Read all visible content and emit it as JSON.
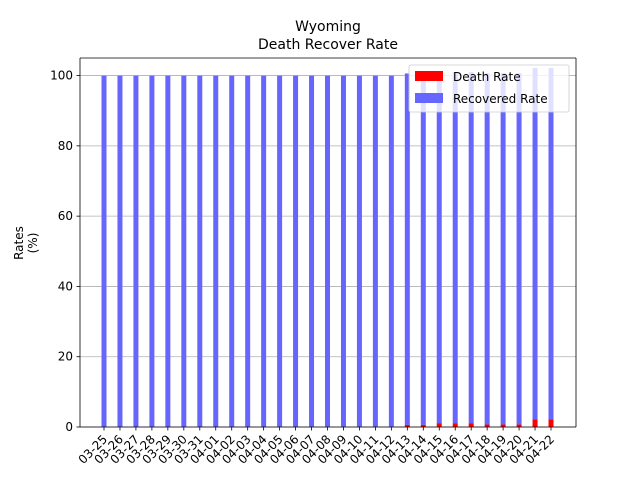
{
  "chart_data": {
    "type": "bar",
    "title": "Wyoming",
    "subtitle": "Death Recover Rate",
    "xlabel": "",
    "ylabel": "Rates\n(%)",
    "ylim": [
      0,
      105
    ],
    "yticks": [
      0,
      20,
      40,
      60,
      80,
      100
    ],
    "grid": "y",
    "legend_position": "top-right",
    "categories": [
      "03-25",
      "03-26",
      "03-27",
      "03-28",
      "03-29",
      "03-30",
      "03-31",
      "04-01",
      "04-02",
      "04-03",
      "04-04",
      "04-05",
      "04-06",
      "04-07",
      "04-08",
      "04-09",
      "04-10",
      "04-11",
      "04-12",
      "04-13",
      "04-14",
      "04-15",
      "04-16",
      "04-17",
      "04-18",
      "04-19",
      "04-20",
      "04-21",
      "04-22"
    ],
    "series": [
      {
        "name": "Death Rate",
        "color": "#ff0000",
        "values": [
          0,
          0,
          0,
          0,
          0,
          0,
          0,
          0,
          0,
          0,
          0,
          0,
          0,
          0,
          0,
          0,
          0,
          0,
          0,
          0.6,
          0.6,
          1.1,
          1.0,
          1.0,
          0.7,
          0.7,
          0.7,
          2.2,
          2.2
        ]
      },
      {
        "name": "Recovered Rate",
        "color": "#6666ff",
        "values": [
          100,
          100,
          100,
          100,
          100,
          100,
          100,
          100,
          100,
          100,
          100,
          100,
          100,
          100,
          100,
          100,
          100,
          100,
          100,
          100,
          100,
          100,
          100,
          100,
          100,
          100,
          100,
          100,
          100
        ]
      }
    ]
  }
}
